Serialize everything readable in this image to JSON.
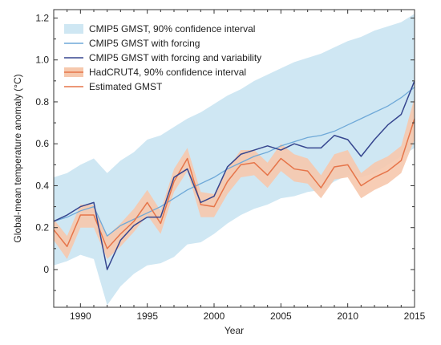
{
  "chart_data": {
    "type": "line",
    "xlabel": "Year",
    "ylabel": "Global-mean temperature anomaly (°C)",
    "xlim": [
      1988,
      2015
    ],
    "ylim": [
      -0.18,
      1.24
    ],
    "x_ticks": [
      1990,
      1995,
      2000,
      2005,
      2010,
      2015
    ],
    "y_ticks": [
      0,
      0.2,
      0.4,
      0.6,
      0.8,
      1.0,
      1.2
    ],
    "y_tick_labels": [
      "0",
      "0.2",
      "0.4",
      "0.6",
      "0.8",
      "1.0",
      "1.2"
    ],
    "grid": false,
    "legend_position": "top-left",
    "x": [
      1988,
      1989,
      1990,
      1991,
      1992,
      1993,
      1994,
      1995,
      1996,
      1997,
      1998,
      1999,
      2000,
      2001,
      2002,
      2003,
      2004,
      2005,
      2006,
      2007,
      2008,
      2009,
      2010,
      2011,
      2012,
      2013,
      2014,
      2015
    ],
    "bands": [
      {
        "name": "CMIP5 GMST, 90% confidence interval",
        "color": "#cfe7f3",
        "lower": [
          0.02,
          0.04,
          0.07,
          0.05,
          -0.17,
          -0.08,
          -0.02,
          0.02,
          0.03,
          0.06,
          0.12,
          0.13,
          0.17,
          0.22,
          0.26,
          0.29,
          0.31,
          0.34,
          0.35,
          0.37,
          0.38,
          0.42,
          0.45,
          0.44,
          0.46,
          0.5,
          0.54,
          0.58
        ],
        "upper": [
          0.44,
          0.46,
          0.5,
          0.53,
          0.46,
          0.52,
          0.56,
          0.62,
          0.64,
          0.68,
          0.72,
          0.75,
          0.79,
          0.83,
          0.86,
          0.9,
          0.93,
          0.96,
          0.99,
          1.01,
          1.03,
          1.06,
          1.09,
          1.11,
          1.14,
          1.16,
          1.18,
          1.22
        ]
      },
      {
        "name": "HadCRUT4, 90% confidence interval",
        "color": "#f6c8ad",
        "lower": [
          0.14,
          0.05,
          0.2,
          0.2,
          0.05,
          0.11,
          0.18,
          0.26,
          0.17,
          0.37,
          0.47,
          0.25,
          0.25,
          0.36,
          0.44,
          0.45,
          0.39,
          0.47,
          0.42,
          0.41,
          0.34,
          0.43,
          0.44,
          0.34,
          0.38,
          0.41,
          0.46,
          0.62
        ],
        "upper": [
          0.24,
          0.16,
          0.31,
          0.31,
          0.16,
          0.22,
          0.29,
          0.38,
          0.28,
          0.48,
          0.58,
          0.37,
          0.36,
          0.48,
          0.57,
          0.57,
          0.51,
          0.6,
          0.55,
          0.53,
          0.45,
          0.55,
          0.57,
          0.46,
          0.51,
          0.54,
          0.59,
          0.82
        ]
      }
    ],
    "series": [
      {
        "name": "CMIP5 GMST with forcing",
        "color": "#6fa9d8",
        "values": [
          0.23,
          0.25,
          0.28,
          0.3,
          0.16,
          0.21,
          0.24,
          0.27,
          0.3,
          0.34,
          0.38,
          0.41,
          0.44,
          0.48,
          0.51,
          0.54,
          0.56,
          0.59,
          0.61,
          0.63,
          0.64,
          0.66,
          0.69,
          0.72,
          0.75,
          0.78,
          0.82,
          0.87
        ]
      },
      {
        "name": "CMIP5 GMST with forcing and variability",
        "color": "#36468f",
        "values": [
          0.23,
          0.26,
          0.3,
          0.32,
          0.0,
          0.14,
          0.21,
          0.25,
          0.25,
          0.44,
          0.48,
          0.32,
          0.35,
          0.49,
          0.55,
          0.57,
          0.59,
          0.57,
          0.6,
          0.58,
          0.58,
          0.64,
          0.62,
          0.54,
          0.62,
          0.69,
          0.74,
          0.9
        ]
      },
      {
        "name": "Estimated GMST",
        "color": "#e6754a",
        "values": [
          0.19,
          0.11,
          0.26,
          0.26,
          0.1,
          0.17,
          0.23,
          0.32,
          0.22,
          0.42,
          0.53,
          0.31,
          0.3,
          0.42,
          0.5,
          0.51,
          0.45,
          0.53,
          0.48,
          0.47,
          0.39,
          0.49,
          0.5,
          0.4,
          0.44,
          0.47,
          0.52,
          0.72
        ]
      }
    ],
    "legend": [
      {
        "label": "CMIP5 GMST, 90% confidence interval",
        "kind": "band",
        "color": "#cfe7f3",
        "edge": "#cfe7f3"
      },
      {
        "label": "CMIP5 GMST with forcing",
        "kind": "line",
        "color": "#6fa9d8"
      },
      {
        "label": "CMIP5 GMST with forcing and variability",
        "kind": "line",
        "color": "#36468f"
      },
      {
        "label": "HadCRUT4, 90% confidence interval",
        "kind": "band",
        "color": "#f6c8ad",
        "edge": "#e6754a"
      },
      {
        "label": "Estimated GMST",
        "kind": "line",
        "color": "#e6754a"
      }
    ]
  }
}
